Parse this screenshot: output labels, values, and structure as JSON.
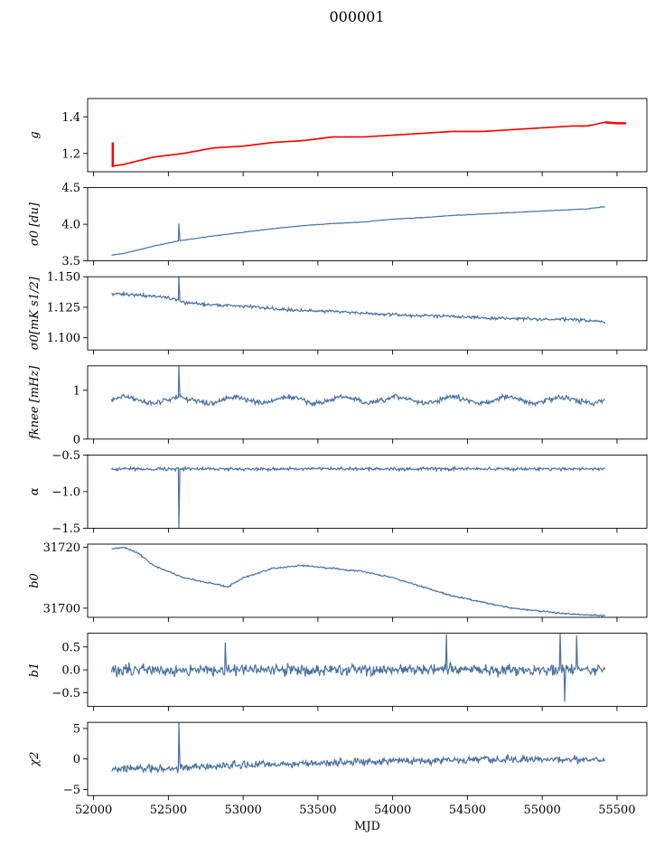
{
  "figure": {
    "title": "000001",
    "xlabel": "MJD",
    "colors": {
      "series": "#4c72a0",
      "fit": "#ff0000",
      "axis": "#000000"
    }
  },
  "chart_data": [
    {
      "type": "line",
      "id": "g",
      "ylabel": "g",
      "ylabel_html": "g",
      "xlim": [
        51960,
        55700
      ],
      "ylim": [
        1.1,
        1.5
      ],
      "yticks": [
        1.2,
        1.4
      ],
      "ytick_labels": [
        "1.2",
        "1.4"
      ],
      "x": [
        52120,
        52200,
        52400,
        52600,
        52800,
        53000,
        53200,
        53400,
        53600,
        53800,
        54000,
        54200,
        54400,
        54600,
        54800,
        55000,
        55200,
        55300,
        55420
      ],
      "series": [
        {
          "name": "data",
          "values": [
            1.13,
            1.14,
            1.18,
            1.2,
            1.23,
            1.24,
            1.26,
            1.27,
            1.29,
            1.29,
            1.3,
            1.31,
            1.32,
            1.32,
            1.33,
            1.34,
            1.35,
            1.35,
            1.37
          ]
        },
        {
          "name": "fit",
          "values": [
            1.13,
            1.14,
            1.18,
            1.2,
            1.23,
            1.24,
            1.26,
            1.27,
            1.29,
            1.29,
            1.3,
            1.31,
            1.32,
            1.32,
            1.33,
            1.34,
            1.35,
            1.35,
            1.37
          ]
        }
      ],
      "noise": 0.002
    },
    {
      "type": "line",
      "id": "sigma0_du",
      "ylabel": "σ0 [du]",
      "xlim": [
        51960,
        55700
      ],
      "ylim": [
        3.5,
        4.5
      ],
      "yticks": [
        3.5,
        4.0,
        4.5
      ],
      "ytick_labels": [
        "3.5",
        "4.0",
        "4.5"
      ],
      "x": [
        52120,
        52200,
        52400,
        52560,
        52800,
        53000,
        53200,
        53400,
        53600,
        53800,
        54000,
        54200,
        54400,
        54600,
        54800,
        55000,
        55200,
        55300,
        55420
      ],
      "series": [
        {
          "name": "data",
          "values": [
            3.58,
            3.6,
            3.7,
            3.77,
            3.84,
            3.89,
            3.94,
            3.98,
            4.01,
            4.03,
            4.07,
            4.09,
            4.12,
            4.14,
            4.16,
            4.18,
            4.2,
            4.21,
            4.24
          ]
        }
      ],
      "noise": 0.004,
      "spikes": [
        {
          "x": 52570,
          "value": 4.01
        }
      ]
    },
    {
      "type": "line",
      "id": "sigma0_mk",
      "ylabel": "σ0[mK s1/2]",
      "xlim": [
        51960,
        55700
      ],
      "ylim": [
        1.09,
        1.15
      ],
      "yticks": [
        1.1,
        1.125,
        1.15
      ],
      "ytick_labels": [
        "1.100",
        "1.125",
        "1.150"
      ],
      "x": [
        52120,
        52300,
        52500,
        52600,
        52800,
        53000,
        53200,
        53400,
        53600,
        53800,
        54000,
        54200,
        54400,
        54600,
        54800,
        55000,
        55200,
        55300,
        55420
      ],
      "series": [
        {
          "name": "data",
          "values": [
            1.136,
            1.135,
            1.133,
            1.129,
            1.127,
            1.126,
            1.124,
            1.122,
            1.122,
            1.12,
            1.119,
            1.118,
            1.118,
            1.116,
            1.116,
            1.115,
            1.115,
            1.114,
            1.113
          ]
        }
      ],
      "noise": 0.0012,
      "spikes": [
        {
          "x": 52570,
          "value": 1.15
        }
      ]
    },
    {
      "type": "line",
      "id": "fknee",
      "ylabel": "fknee [mHz]",
      "xlim": [
        51960,
        55700
      ],
      "ylim": [
        0,
        1.5
      ],
      "yticks": [
        0,
        1
      ],
      "ytick_labels": [
        "0",
        "1"
      ],
      "x": [
        52120,
        55420
      ],
      "series": [
        {
          "name": "data",
          "values": [
            0.8,
            0.8
          ]
        }
      ],
      "noise": 0.05,
      "wave": {
        "amp": 0.06,
        "period": 365
      },
      "spikes": [
        {
          "x": 52570,
          "value": 1.5
        }
      ]
    },
    {
      "type": "line",
      "id": "alpha",
      "ylabel": "α",
      "xlim": [
        51960,
        55700
      ],
      "ylim": [
        -1.5,
        -0.5
      ],
      "yticks": [
        -1.5,
        -1.0,
        -0.5
      ],
      "ytick_labels": [
        "−1.5",
        "−1.0",
        "−0.5"
      ],
      "x": [
        52120,
        55420
      ],
      "series": [
        {
          "name": "data",
          "values": [
            -0.69,
            -0.69
          ]
        }
      ],
      "noise": 0.02,
      "spikes": [
        {
          "x": 52570,
          "value": -1.5
        }
      ]
    },
    {
      "type": "line",
      "id": "b0",
      "ylabel": "b0",
      "xlim": [
        51960,
        55700
      ],
      "ylim": [
        31697,
        31721
      ],
      "yticks": [
        31700,
        31720
      ],
      "ytick_labels": [
        "31700",
        "31720"
      ],
      "x": [
        52120,
        52200,
        52300,
        52400,
        52600,
        52800,
        52900,
        53000,
        53200,
        53400,
        53600,
        53800,
        54000,
        54200,
        54400,
        54600,
        54800,
        55000,
        55200,
        55420
      ],
      "series": [
        {
          "name": "data",
          "values": [
            31719.5,
            31720,
            31718,
            31714,
            31710,
            31708,
            31707,
            31710,
            31713,
            31714,
            31713,
            31712,
            31710,
            31707,
            31704,
            31702,
            31700,
            31699,
            31698,
            31697.5
          ]
        }
      ],
      "noise": 0.25
    },
    {
      "type": "line",
      "id": "b1",
      "ylabel": "b1",
      "xlim": [
        51960,
        55700
      ],
      "ylim": [
        -0.8,
        0.8
      ],
      "yticks": [
        -0.5,
        0.0,
        0.5
      ],
      "ytick_labels": [
        "−0.5",
        "0.0",
        "0.5"
      ],
      "x": [
        52120,
        55420
      ],
      "series": [
        {
          "name": "data",
          "values": [
            0,
            0
          ]
        }
      ],
      "noise": 0.12,
      "spikes": [
        {
          "x": 52880,
          "value": 0.6
        },
        {
          "x": 54360,
          "value": 0.78
        },
        {
          "x": 55120,
          "value": 0.82
        },
        {
          "x": 55150,
          "value": -0.7
        },
        {
          "x": 55230,
          "value": 0.75
        }
      ]
    },
    {
      "type": "line",
      "id": "chi2",
      "ylabel": "χ2",
      "xlim": [
        51960,
        55700
      ],
      "ylim": [
        -6,
        6
      ],
      "yticks": [
        -5,
        0,
        5
      ],
      "ytick_labels": [
        "−5",
        "0",
        "5"
      ],
      "x": [
        52120,
        52500,
        53000,
        53500,
        54000,
        54500,
        55000,
        55420
      ],
      "series": [
        {
          "name": "data",
          "values": [
            -1.6,
            -1.5,
            -1.0,
            -0.7,
            -0.3,
            -0.2,
            -0.1,
            0
          ]
        }
      ],
      "noise": 0.6,
      "spikes": [
        {
          "x": 52570,
          "value": 6
        }
      ]
    }
  ],
  "xaxis": {
    "xlim": [
      51960,
      55700
    ],
    "ticks": [
      52000,
      52500,
      53000,
      53500,
      54000,
      54500,
      55000,
      55500
    ],
    "tick_labels": [
      "52000",
      "52500",
      "53000",
      "53500",
      "54000",
      "54500",
      "55000",
      "55500"
    ]
  }
}
